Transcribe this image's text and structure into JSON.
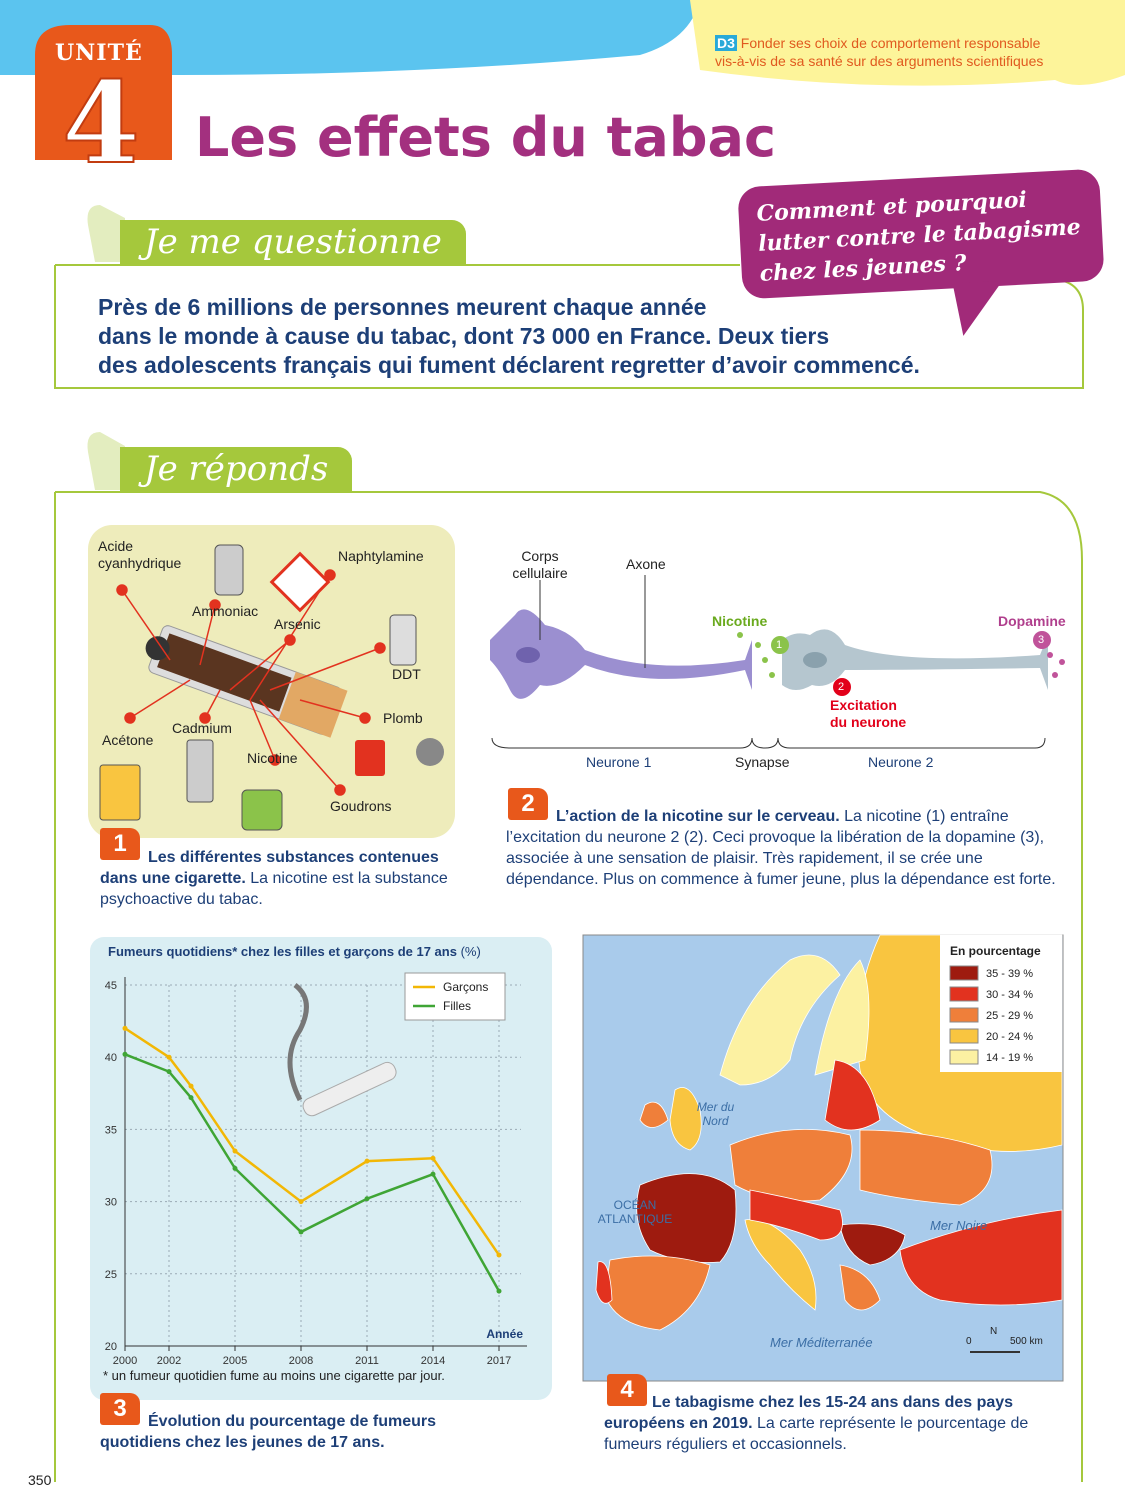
{
  "header": {
    "unit_label": "UNITÉ",
    "unit_number": "4",
    "title": "Les effets du tabac",
    "skill_code": "D3",
    "skill_lines": [
      "Fonder ses choix de comportement responsable",
      "vis-à-vis de sa santé sur des arguments scientifiques"
    ]
  },
  "question": {
    "heading": "Je me questionne",
    "bubble_lines": [
      "Comment et pourquoi",
      "lutter contre le tabagisme",
      "chez les jeunes ?"
    ],
    "text_lines": [
      "Près de 6 millions de personnes meurent chaque année",
      "dans le monde à cause du tabac, dont 73 000 en France. Deux tiers",
      "des adolescents français qui fument déclarent regretter d’avoir commencé."
    ]
  },
  "answers": {
    "heading": "Je réponds"
  },
  "doc1": {
    "number": "1",
    "labels": [
      "Acide cyanhydrique",
      "Ammoniac",
      "Arsenic",
      "Naphtylamine",
      "DDT",
      "Plomb",
      "Goudrons",
      "Nicotine",
      "Cadmium",
      "Acétone"
    ],
    "caption_title": "Les différentes substances contenues dans une cigarette.",
    "caption_text": "La nicotine est la substance psychoactive du tabac."
  },
  "doc2": {
    "number": "2",
    "labels": {
      "cell_body": "Corps cellulaire",
      "axon": "Axone",
      "nicotine": "Nicotine",
      "dopamine": "Dopamine",
      "step1": "1",
      "step2": "2",
      "step3": "3",
      "excitation": "Excitation du neurone",
      "neuron1": "Neurone 1",
      "synapse": "Synapse",
      "neuron2": "Neurone 2"
    },
    "caption_title": "L’action de la nicotine sur le cerveau.",
    "caption_text": "La nicotine (1) entraîne l’excitation du neurone 2 (2). Ceci provoque la libération de la dopamine (3), associée à une sensation de plaisir. Très rapidement, il se crée une dépendance. Plus on commence à fumer jeune, plus la dépendance est forte."
  },
  "doc3": {
    "number": "3",
    "caption_title": "Évolution du pourcentage de fumeurs quotidiens chez les jeunes de 17 ans.",
    "chart": {
      "type": "line",
      "title": "Fumeurs quotidiens* chez les filles et garçons de 17 ans",
      "title_unit": "(%)",
      "x_label": "Année",
      "x": [
        2000,
        2002,
        2003,
        2005,
        2008,
        2011,
        2014,
        2017
      ],
      "series": [
        {
          "name": "Garçons",
          "color": "#f2b705",
          "values": [
            42,
            40,
            38,
            33.5,
            30,
            32.8,
            33,
            26.3
          ]
        },
        {
          "name": "Filles",
          "color": "#3fa535",
          "values": [
            40.2,
            39,
            37.2,
            32.3,
            27.9,
            30.2,
            31.9,
            23.8
          ]
        }
      ],
      "xlim": [
        2000,
        2018
      ],
      "ylim": [
        20,
        45
      ],
      "xticks": [
        2000,
        2002,
        2005,
        2008,
        2011,
        2014,
        2017
      ],
      "yticks": [
        20,
        25,
        30,
        35,
        40,
        45
      ],
      "grid": true,
      "legend": "top-right",
      "footnote": "* un fumeur quotidien fume au moins une cigarette par jour."
    }
  },
  "doc4": {
    "number": "4",
    "legend_title": "En pourcentage",
    "legend": [
      {
        "label": "35 - 39 %",
        "color": "#9e1b0f"
      },
      {
        "label": "30 - 34 %",
        "color": "#e2321f"
      },
      {
        "label": "25 - 29 %",
        "color": "#ef7f3a"
      },
      {
        "label": "20 - 24 %",
        "color": "#f9c540"
      },
      {
        "label": "14 - 19 %",
        "color": "#fcf1a2"
      }
    ],
    "places": {
      "north_sea": "Mer du Nord",
      "atlantic": "OCÉAN ATLANTIQUE",
      "black_sea": "Mer Noire",
      "mediterranean": "Mer Méditerranée"
    },
    "scale_start": "0",
    "scale_end": "500 km",
    "north": "N",
    "caption_title": "Le tabagisme chez les 15-24 ans dans des pays européens en 2019.",
    "caption_text": "La carte représente le pourcentage de fumeurs réguliers et occasionnels."
  },
  "page_number": "350"
}
